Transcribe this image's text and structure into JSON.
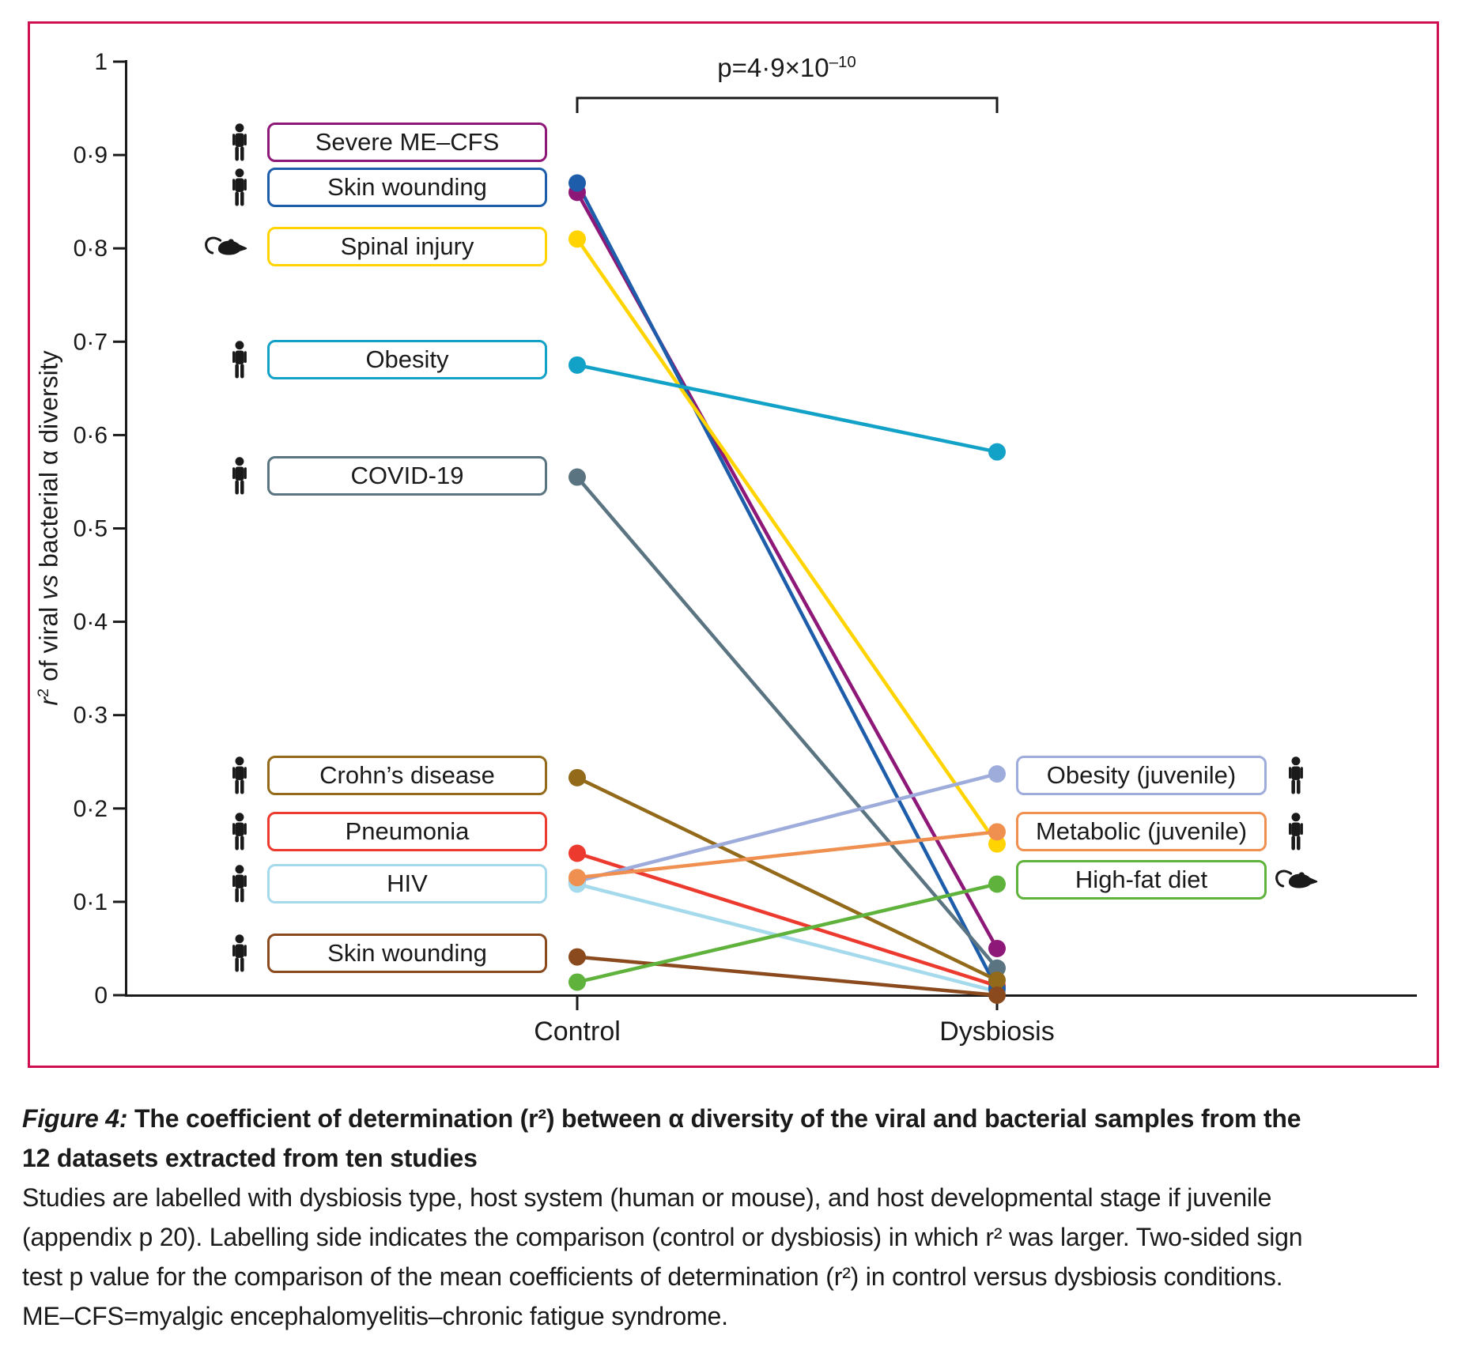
{
  "colors": {
    "frame_border": "#CE1050",
    "ink": "#1a1a1a"
  },
  "figure": {
    "p_value": {
      "base": "p=4·9×10",
      "exp": "–10"
    },
    "y_axis": {
      "label_r": "r",
      "label_exp": "2",
      "label_mid": " of viral ",
      "label_vs": "vs",
      "label_end": " bacterial α diversity",
      "ticks": [
        "0",
        "0·1",
        "0·2",
        "0·3",
        "0·4",
        "0·5",
        "0·6",
        "0·7",
        "0·8",
        "0·9",
        "1"
      ]
    },
    "x_categories": [
      "Control",
      "Dysbiosis"
    ]
  },
  "chart_data": {
    "type": "line",
    "subtype": "paired-slope-chart",
    "categories": [
      "Control",
      "Dysbiosis"
    ],
    "ylabel": "r² of viral vs bacterial α diversity",
    "ylim": [
      0,
      1
    ],
    "grid": false,
    "annotation": "p=4·9×10⁻¹⁰",
    "series": [
      {
        "name": "Severe ME–CFS",
        "host": "human",
        "label_side": "control",
        "color": "#8E1878",
        "values": [
          0.86,
          0.05
        ],
        "label_at": 0.914
      },
      {
        "name": "Skin wounding",
        "host": "human",
        "label_side": "control",
        "color": "#1E5DA9",
        "values": [
          0.87,
          0.007
        ],
        "label_at": 0.865
      },
      {
        "name": "Spinal injury",
        "host": "mouse",
        "label_side": "control",
        "color": "#FFD400",
        "values": [
          0.81,
          0.162
        ],
        "label_at": 0.802
      },
      {
        "name": "Obesity",
        "host": "human",
        "label_side": "control",
        "color": "#12A1C7",
        "values": [
          0.675,
          0.582
        ],
        "label_at": 0.681
      },
      {
        "name": "COVID-19",
        "host": "human",
        "label_side": "control",
        "color": "#5A7482",
        "values": [
          0.555,
          0.029
        ],
        "label_at": 0.556
      },
      {
        "name": "Crohn’s disease",
        "host": "human",
        "label_side": "control",
        "color": "#926A1A",
        "values": [
          0.233,
          0.016
        ],
        "label_at": 0.235
      },
      {
        "name": "Pneumonia",
        "host": "human",
        "label_side": "control",
        "color": "#EC3A2E",
        "values": [
          0.152,
          0.01
        ],
        "label_at": 0.175
      },
      {
        "name": "HIV",
        "host": "human",
        "label_side": "control",
        "color": "#A5DAEC",
        "values": [
          0.119,
          0.004
        ],
        "label_at": 0.119
      },
      {
        "name": "Skin wounding",
        "host": "human",
        "label_side": "control",
        "color": "#8A4A1E",
        "values": [
          0.041,
          0.0
        ],
        "label_at": 0.045
      },
      {
        "name": "Obesity (juvenile)",
        "host": "human",
        "label_side": "dysbiosis",
        "color": "#9DACDB",
        "values": [
          0.122,
          0.237
        ],
        "label_at": 0.235
      },
      {
        "name": "Metabolic (juvenile)",
        "host": "human",
        "label_side": "dysbiosis",
        "color": "#EF9051",
        "values": [
          0.126,
          0.175
        ],
        "label_at": 0.175
      },
      {
        "name": "High-fat diet",
        "host": "mouse",
        "label_side": "dysbiosis",
        "color": "#5FB33C",
        "values": [
          0.014,
          0.119
        ],
        "label_at": 0.124
      }
    ]
  },
  "caption": {
    "figure_label": "Figure 4:",
    "title_line1_rest": " The coefficient of determination (r²) between α diversity of the viral and bacterial samples from the",
    "title_line2": "12 datasets extracted from ten studies",
    "body_lines": [
      "Studies are labelled with dysbiosis type, host system (human or mouse), and host developmental stage if juvenile",
      "(appendix p 20). Labelling side indicates the comparison (control or dysbiosis) in which r² was larger. Two-sided sign",
      "test p value for the comparison of the mean coefficients of determination (r²) in control versus dysbiosis conditions.",
      "ME–CFS=myalgic encephalomyelitis–chronic fatigue syndrome."
    ]
  }
}
